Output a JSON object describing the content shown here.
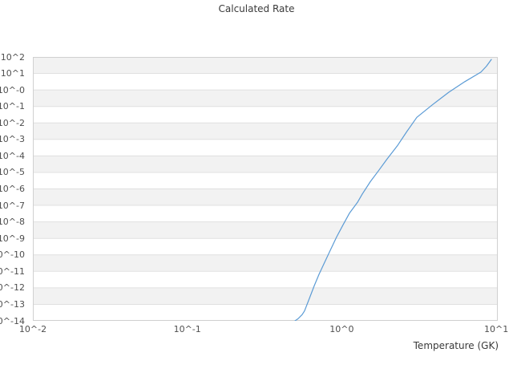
{
  "chart": {
    "title": "Calculated Rate",
    "xlabel": "Temperature (GK)"
  },
  "chart_data": {
    "type": "line",
    "title": "Calculated Rate",
    "xlabel": "Temperature (GK)",
    "ylabel": "",
    "x_scale": "log",
    "y_scale": "log",
    "x_log_range": [
      -2,
      1.01
    ],
    "y_log_range": [
      -14,
      2
    ],
    "grid": "horizontal-stripes",
    "legend": "none",
    "x_ticks": [
      {
        "label": "10^-2",
        "log": -2
      },
      {
        "label": "10^-1",
        "log": -1
      },
      {
        "label": "10^0",
        "log": 0
      },
      {
        "label": "10^1",
        "log": 1
      }
    ],
    "y_ticks": [
      {
        "label": "10^2",
        "log": 2
      },
      {
        "label": "10^1",
        "log": 1
      },
      {
        "label": "10^-0",
        "log": 0
      },
      {
        "label": "10^-1",
        "log": -1
      },
      {
        "label": "10^-2",
        "log": -2
      },
      {
        "label": "10^-3",
        "log": -3
      },
      {
        "label": "10^-4",
        "log": -4
      },
      {
        "label": "10^-5",
        "log": -5
      },
      {
        "label": "10^-6",
        "log": -6
      },
      {
        "label": "10^-7",
        "log": -7
      },
      {
        "label": "10^-8",
        "log": -8
      },
      {
        "label": "10^-9",
        "log": -9
      },
      {
        "label": "10^-10",
        "log": -10
      },
      {
        "label": "10^-11",
        "log": -11
      },
      {
        "label": "10^-12",
        "log": -12
      },
      {
        "label": "10^-13",
        "log": -13
      },
      {
        "label": "10^-14",
        "log": -14
      }
    ],
    "series": [
      {
        "name": "calculated-rate",
        "color": "#5b9bd5",
        "x_temperature_gk": [
          0.498,
          0.52,
          0.554,
          0.574,
          0.617,
          0.663,
          0.712,
          0.774,
          0.841,
          0.926,
          1.019,
          1.121,
          1.263,
          1.357,
          1.53,
          1.723,
          1.966,
          2.3,
          2.65,
          3.06,
          3.885,
          4.93,
          6.26,
          7.96,
          8.65,
          9.3
        ],
        "log10_rate": [
          -14.0,
          -13.88,
          -13.62,
          -13.4,
          -12.64,
          -11.88,
          -11.18,
          -10.46,
          -9.74,
          -8.92,
          -8.18,
          -7.48,
          -6.82,
          -6.32,
          -5.56,
          -4.92,
          -4.18,
          -3.36,
          -2.5,
          -1.66,
          -0.88,
          -0.14,
          0.5,
          1.08,
          1.44,
          1.85
        ]
      }
    ],
    "colors": {
      "background": "#ffffff",
      "stripe": "#f2f2f2",
      "gridline": "#e0e0e0",
      "frame": "#d0d0d0",
      "line": "#5b9bd5",
      "title_text": "#3a3a3a",
      "tick_text": "#4f4f4f"
    }
  }
}
